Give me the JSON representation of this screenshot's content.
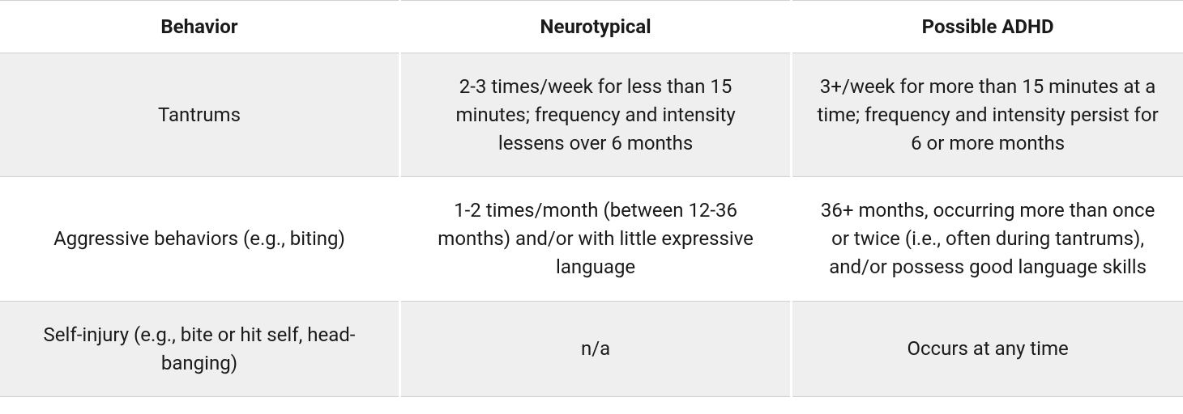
{
  "table": {
    "type": "table",
    "columns": [
      "Behavior",
      "Neurotypical",
      "Possible ADHD"
    ],
    "rows": [
      [
        "Tantrums",
        "2-3 times/week for less than 15 minutes; frequency and intensity lessens over 6 months",
        "3+/week for more than 15 minutes at a time; frequency and intensity persist for 6 or more months"
      ],
      [
        "Aggressive behaviors (e.g., biting)",
        "1-2 times/month (between 12-36 months) and/or with little expressive language",
        "36+ months, occurring more than once or twice (i.e., often during tantrums), and/or possess good language skills"
      ],
      [
        "Self-injury (e.g., bite or hit self, head-banging)",
        "n/a",
        "Occurs at any time"
      ]
    ],
    "header_fontsize": 24,
    "header_fontweight": 700,
    "body_fontsize": 24,
    "text_color": "#1a1a1a",
    "stripe_bg": "#efefef",
    "plain_bg": "#ffffff",
    "border_color": "#d0d0d0",
    "column_gap_color": "#ffffff",
    "column_widths_pct": [
      33.8,
      33.1,
      33.1
    ],
    "text_align": "center",
    "line_height": 1.45
  }
}
